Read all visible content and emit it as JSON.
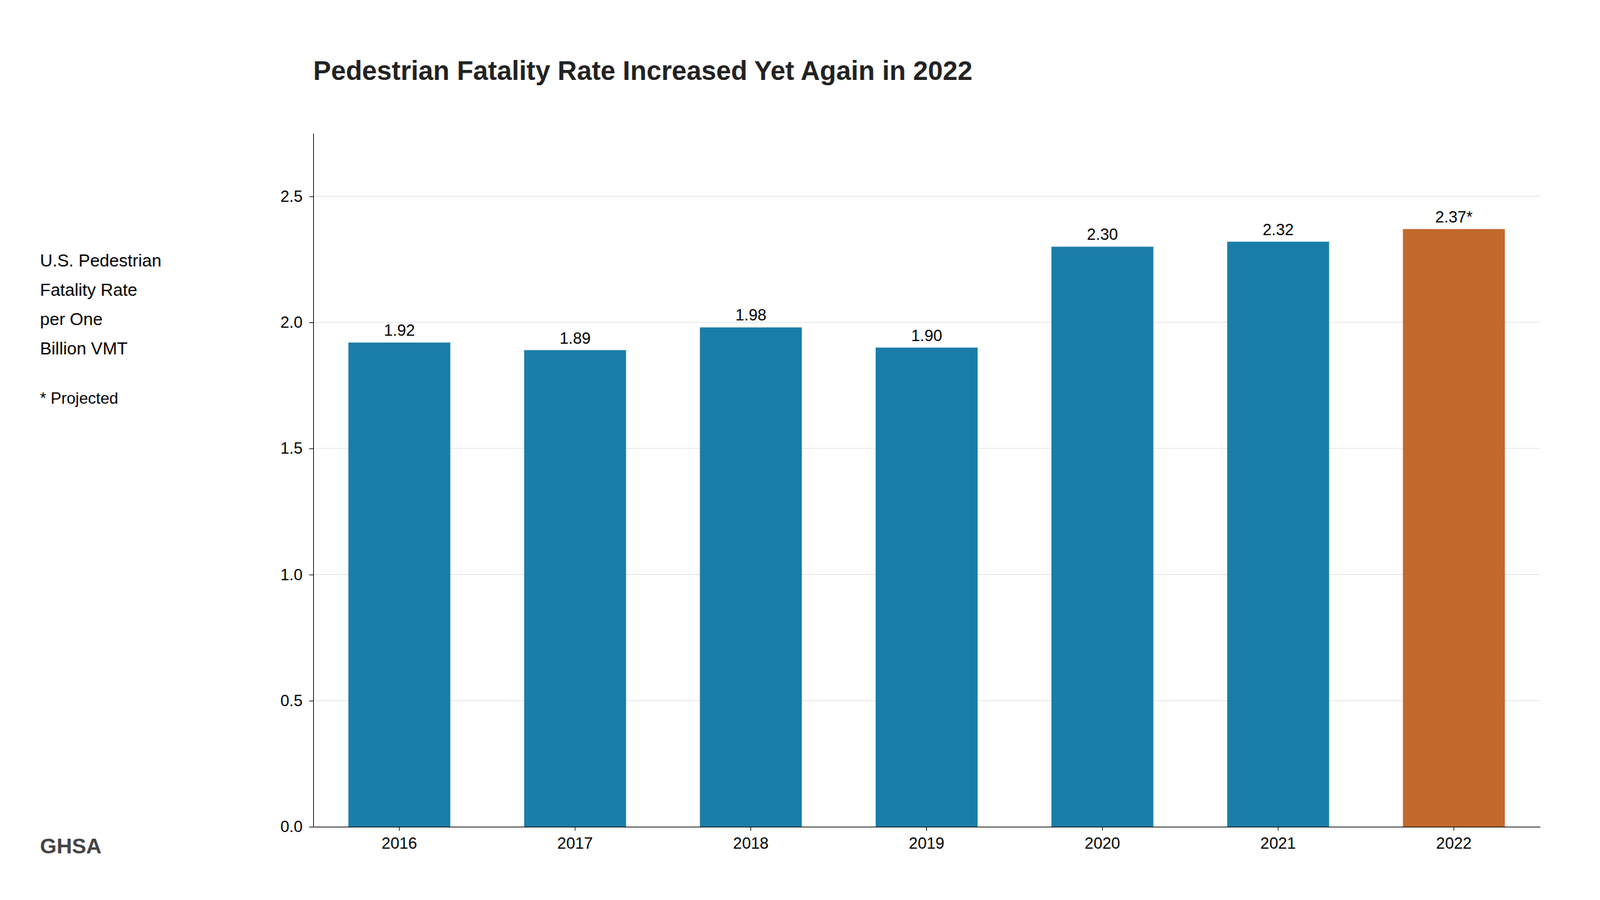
{
  "chart_data": {
    "type": "bar",
    "title": "Pedestrian Fatality Rate Increased Yet Again in 2022",
    "ylabel": [
      "U.S. Pedestrian",
      "Fatality Rate",
      "per One",
      "Billion VMT"
    ],
    "annotations": [
      "* Projected",
      "GHSA"
    ],
    "categories": [
      "2016",
      "2017",
      "2018",
      "2019",
      "2020",
      "2021",
      "2022"
    ],
    "values": [
      1.92,
      1.89,
      1.98,
      1.9,
      2.3,
      2.32,
      2.37
    ],
    "value_labels": [
      "1.92",
      "1.89",
      "1.98",
      "1.90",
      "2.30",
      "2.32",
      "2.37*"
    ],
    "colors": [
      "#1a7da8",
      "#1a7da8",
      "#1a7da8",
      "#1a7da8",
      "#1a7da8",
      "#1a7da8",
      "#c1692b"
    ],
    "data_labels": true,
    "ylim": [
      0,
      2.75
    ],
    "yticks": [
      {
        "value": 0,
        "label": "0.0"
      },
      0.5,
      {
        "value": 1,
        "label": "1.0"
      },
      1.5,
      {
        "value": 2,
        "label": "2.0"
      },
      2.5
    ],
    "grid": true
  }
}
